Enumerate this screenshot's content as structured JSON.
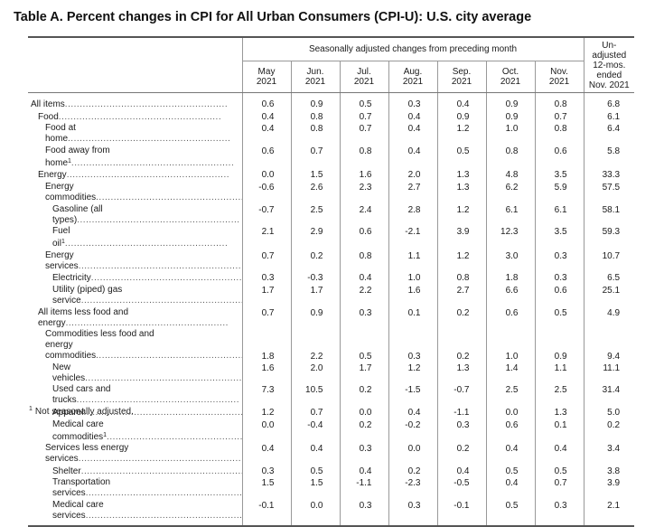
{
  "title": "Table A. Percent changes in CPI for All Urban Consumers (CPI-U): U.S. city average",
  "header": {
    "group_label": "Seasonally adjusted changes from preceding month",
    "unadjusted_label": "Un- adjusted 12-mos. ended Nov. 2021",
    "columns": [
      {
        "month": "May",
        "year": "2021"
      },
      {
        "month": "Jun.",
        "year": "2021"
      },
      {
        "month": "Jul.",
        "year": "2021"
      },
      {
        "month": "Aug.",
        "year": "2021"
      },
      {
        "month": "Sep.",
        "year": "2021"
      },
      {
        "month": "Oct.",
        "year": "2021"
      },
      {
        "month": "Nov.",
        "year": "2021"
      }
    ]
  },
  "rows": [
    {
      "label": "All items",
      "fn": "",
      "indent": 0,
      "values": [
        "0.6",
        "0.9",
        "0.5",
        "0.3",
        "0.4",
        "0.9",
        "0.8",
        "6.8"
      ]
    },
    {
      "label": "Food",
      "fn": "",
      "indent": 1,
      "values": [
        "0.4",
        "0.8",
        "0.7",
        "0.4",
        "0.9",
        "0.9",
        "0.7",
        "6.1"
      ]
    },
    {
      "label": "Food at home",
      "fn": "",
      "indent": 2,
      "values": [
        "0.4",
        "0.8",
        "0.7",
        "0.4",
        "1.2",
        "1.0",
        "0.8",
        "6.4"
      ]
    },
    {
      "label": "Food away from home",
      "fn": "1",
      "indent": 2,
      "values": [
        "0.6",
        "0.7",
        "0.8",
        "0.4",
        "0.5",
        "0.8",
        "0.6",
        "5.8"
      ]
    },
    {
      "label": "Energy",
      "fn": "",
      "indent": 1,
      "values": [
        "0.0",
        "1.5",
        "1.6",
        "2.0",
        "1.3",
        "4.8",
        "3.5",
        "33.3"
      ]
    },
    {
      "label": "Energy commodities",
      "fn": "",
      "indent": 2,
      "values": [
        "-0.6",
        "2.6",
        "2.3",
        "2.7",
        "1.3",
        "6.2",
        "5.9",
        "57.5"
      ]
    },
    {
      "label": "Gasoline (all types)",
      "fn": "",
      "indent": 3,
      "values": [
        "-0.7",
        "2.5",
        "2.4",
        "2.8",
        "1.2",
        "6.1",
        "6.1",
        "58.1"
      ]
    },
    {
      "label": "Fuel oil",
      "fn": "1",
      "indent": 3,
      "values": [
        "2.1",
        "2.9",
        "0.6",
        "-2.1",
        "3.9",
        "12.3",
        "3.5",
        "59.3"
      ]
    },
    {
      "label": "Energy services",
      "fn": "",
      "indent": 2,
      "values": [
        "0.7",
        "0.2",
        "0.8",
        "1.1",
        "1.2",
        "3.0",
        "0.3",
        "10.7"
      ]
    },
    {
      "label": "Electricity",
      "fn": "",
      "indent": 3,
      "values": [
        "0.3",
        "-0.3",
        "0.4",
        "1.0",
        "0.8",
        "1.8",
        "0.3",
        "6.5"
      ]
    },
    {
      "label": "Utility (piped) gas service",
      "fn": "",
      "indent": 3,
      "values": [
        "1.7",
        "1.7",
        "2.2",
        "1.6",
        "2.7",
        "6.6",
        "0.6",
        "25.1"
      ]
    },
    {
      "label": "All items less food and energy",
      "fn": "",
      "indent": 1,
      "values": [
        "0.7",
        "0.9",
        "0.3",
        "0.1",
        "0.2",
        "0.6",
        "0.5",
        "4.9"
      ]
    },
    {
      "label": "Commodities less food and energy commodities",
      "fn": "",
      "indent": 2,
      "tall": true,
      "values": [
        "1.8",
        "2.2",
        "0.5",
        "0.3",
        "0.2",
        "1.0",
        "0.9",
        "9.4"
      ]
    },
    {
      "label": "New vehicles",
      "fn": "",
      "indent": 3,
      "values": [
        "1.6",
        "2.0",
        "1.7",
        "1.2",
        "1.3",
        "1.4",
        "1.1",
        "11.1"
      ]
    },
    {
      "label": "Used cars and trucks",
      "fn": "",
      "indent": 3,
      "values": [
        "7.3",
        "10.5",
        "0.2",
        "-1.5",
        "-0.7",
        "2.5",
        "2.5",
        "31.4"
      ]
    },
    {
      "label": "Apparel",
      "fn": "",
      "indent": 3,
      "values": [
        "1.2",
        "0.7",
        "0.0",
        "0.4",
        "-1.1",
        "0.0",
        "1.3",
        "5.0"
      ]
    },
    {
      "label": "Medical care commodities",
      "fn": "1",
      "indent": 3,
      "values": [
        "0.0",
        "-0.4",
        "0.2",
        "-0.2",
        "0.3",
        "0.6",
        "0.1",
        "0.2"
      ]
    },
    {
      "label": "Services less energy services",
      "fn": "",
      "indent": 2,
      "values": [
        "0.4",
        "0.4",
        "0.3",
        "0.0",
        "0.2",
        "0.4",
        "0.4",
        "3.4"
      ]
    },
    {
      "label": "Shelter",
      "fn": "",
      "indent": 3,
      "values": [
        "0.3",
        "0.5",
        "0.4",
        "0.2",
        "0.4",
        "0.5",
        "0.5",
        "3.8"
      ]
    },
    {
      "label": "Transportation services",
      "fn": "",
      "indent": 3,
      "values": [
        "1.5",
        "1.5",
        "-1.1",
        "-2.3",
        "-0.5",
        "0.4",
        "0.7",
        "3.9"
      ]
    },
    {
      "label": "Medical care services",
      "fn": "",
      "indent": 3,
      "values": [
        "-0.1",
        "0.0",
        "0.3",
        "0.3",
        "-0.1",
        "0.5",
        "0.3",
        "2.1"
      ]
    }
  ],
  "footnote": {
    "marker": "1",
    "text": "Not seasonally adjusted."
  }
}
